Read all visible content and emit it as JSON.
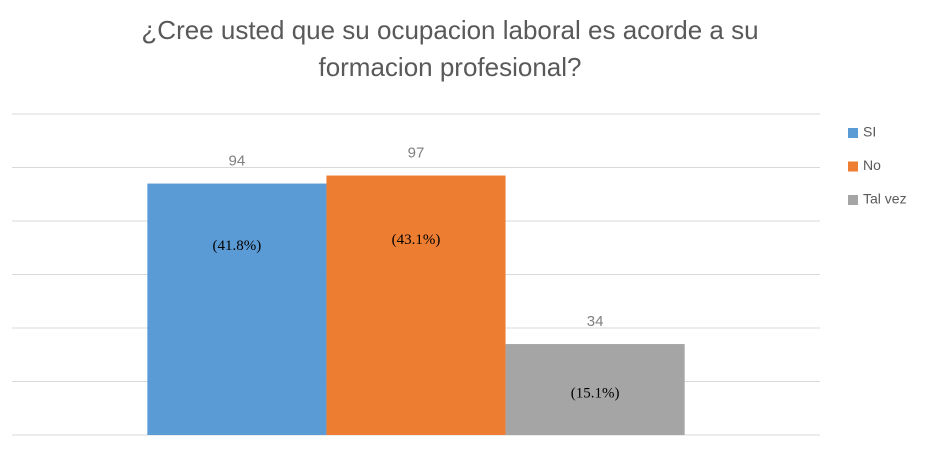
{
  "chart_data": {
    "type": "bar",
    "title": "¿Cree usted que su ocupacion laboral es acorde a su formacion profesional?",
    "categories": [
      null
    ],
    "series": [
      {
        "name": "SI",
        "color": "#5b9bd5",
        "values": [
          94
        ],
        "percent_labels": [
          "(41.8%)"
        ]
      },
      {
        "name": "No",
        "color": "#ed7d31",
        "values": [
          97
        ],
        "percent_labels": [
          "(43.1%)"
        ]
      },
      {
        "name": "Tal vez",
        "color": "#a5a5a5",
        "values": [
          34
        ],
        "percent_labels": [
          "(15.1%)"
        ]
      }
    ],
    "ylim": [
      0,
      120
    ],
    "yticks": [
      0,
      20,
      40,
      60,
      80,
      100,
      120
    ],
    "grid": true,
    "legend": "right"
  }
}
